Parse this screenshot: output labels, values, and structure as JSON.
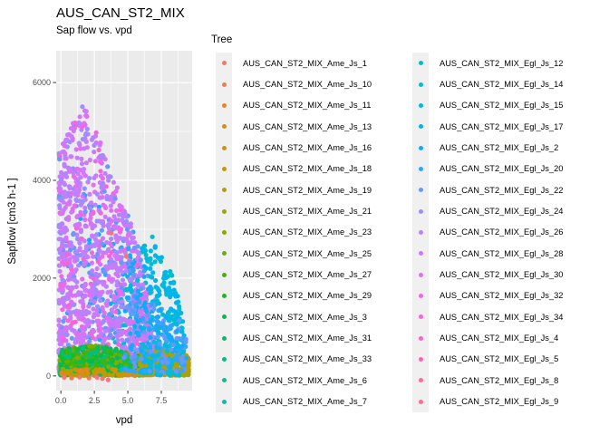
{
  "title": "AUS_CAN_ST2_MIX",
  "subtitle": "Sap flow vs. vpd",
  "chart_data": {
    "type": "scatter",
    "title": "AUS_CAN_ST2_MIX",
    "subtitle": "Sap flow vs. vpd",
    "xlabel": "vpd",
    "ylabel": "Sapflow [cm3 h-1 ]",
    "xlim": [
      -0.35,
      9.8
    ],
    "ylim": [
      -300,
      6650
    ],
    "grid": true,
    "panel_color": "#EBEBEB",
    "gridline_color": "#FFFFFF",
    "tick_label_color": "#4d4d4d",
    "x_ticks": {
      "values": [
        0,
        2.5,
        5,
        7.5
      ],
      "labels": [
        "0.0",
        "2.5",
        "5.0",
        "7.5"
      ]
    },
    "y_ticks": {
      "values": [
        0,
        2000,
        4000,
        6000
      ],
      "labels": [
        "0",
        "2000",
        "4000",
        "6000"
      ]
    },
    "x_minor": [
      1.25,
      3.75,
      6.25,
      8.75
    ],
    "y_minor": [
      1000,
      3000,
      5000
    ],
    "legend_title": "Tree",
    "legend_position": "right",
    "series": [
      {
        "name": "AUS_CAN_ST2_MIX_Ame_Js_1",
        "color": "#F8766D"
      },
      {
        "name": "AUS_CAN_ST2_MIX_Ame_Js_10",
        "color": "#F07E4A"
      },
      {
        "name": "AUS_CAN_ST2_MIX_Ame_Js_11",
        "color": "#E78528"
      },
      {
        "name": "AUS_CAN_ST2_MIX_Ame_Js_13",
        "color": "#DC8D0B"
      },
      {
        "name": "AUS_CAN_ST2_MIX_Ame_Js_16",
        "color": "#CF9400"
      },
      {
        "name": "AUS_CAN_ST2_MIX_Ame_Js_18",
        "color": "#C19B00"
      },
      {
        "name": "AUS_CAN_ST2_MIX_Ame_Js_19",
        "color": "#B1A000"
      },
      {
        "name": "AUS_CAN_ST2_MIX_Ame_Js_21",
        "color": "#9EA600"
      },
      {
        "name": "AUS_CAN_ST2_MIX_Ame_Js_23",
        "color": "#87AB00"
      },
      {
        "name": "AUS_CAN_ST2_MIX_Ame_Js_25",
        "color": "#69B000"
      },
      {
        "name": "AUS_CAN_ST2_MIX_Ame_Js_27",
        "color": "#42B500"
      },
      {
        "name": "AUS_CAN_ST2_MIX_Ame_Js_29",
        "color": "#1EB825"
      },
      {
        "name": "AUS_CAN_ST2_MIX_Ame_Js_3",
        "color": "#00BB51"
      },
      {
        "name": "AUS_CAN_ST2_MIX_Ame_Js_31",
        "color": "#00BD6C"
      },
      {
        "name": "AUS_CAN_ST2_MIX_Ame_Js_33",
        "color": "#00BF86"
      },
      {
        "name": "AUS_CAN_ST2_MIX_Ame_Js_6",
        "color": "#00C19C"
      },
      {
        "name": "AUS_CAN_ST2_MIX_Ame_Js_7",
        "color": "#00C0B1"
      },
      {
        "name": "AUS_CAN_ST2_MIX_Egl_Js_12",
        "color": "#00BFC4"
      },
      {
        "name": "AUS_CAN_ST2_MIX_Egl_Js_14",
        "color": "#00BDD5"
      },
      {
        "name": "AUS_CAN_ST2_MIX_Egl_Js_15",
        "color": "#00B8E4"
      },
      {
        "name": "AUS_CAN_ST2_MIX_Egl_Js_17",
        "color": "#00B2F2"
      },
      {
        "name": "AUS_CAN_ST2_MIX_Egl_Js_2",
        "color": "#13ABF9"
      },
      {
        "name": "AUS_CAN_ST2_MIX_Egl_Js_20",
        "color": "#32A3FE"
      },
      {
        "name": "AUS_CAN_ST2_MIX_Egl_Js_22",
        "color": "#6898FF"
      },
      {
        "name": "AUS_CAN_ST2_MIX_Egl_Js_24",
        "color": "#9B8EFF"
      },
      {
        "name": "AUS_CAN_ST2_MIX_Egl_Js_26",
        "color": "#B982FF"
      },
      {
        "name": "AUS_CAN_ST2_MIX_Egl_Js_28",
        "color": "#D077FC"
      },
      {
        "name": "AUS_CAN_ST2_MIX_Egl_Js_30",
        "color": "#E36DF4"
      },
      {
        "name": "AUS_CAN_ST2_MIX_Egl_Js_32",
        "color": "#F067E8"
      },
      {
        "name": "AUS_CAN_ST2_MIX_Egl_Js_34",
        "color": "#FA62DA"
      },
      {
        "name": "AUS_CAN_ST2_MIX_Egl_Js_4",
        "color": "#FD62C7"
      },
      {
        "name": "AUS_CAN_ST2_MIX_Egl_Js_5",
        "color": "#FF64B4"
      },
      {
        "name": "AUS_CAN_ST2_MIX_Egl_Js_8",
        "color": "#FF699E"
      },
      {
        "name": "AUS_CAN_ST2_MIX_Egl_Js_9",
        "color": "#FC6F86"
      }
    ],
    "point_clusters": [
      {
        "name": "blue-under",
        "count": 240,
        "x": {
          "min": 0.3,
          "span": 8.9,
          "pow": 1.0
        },
        "env": [
          [
            0,
            4100
          ],
          [
            3,
            3600
          ],
          [
            4,
            3400
          ],
          [
            5,
            3300
          ],
          [
            6,
            2500
          ],
          [
            7,
            1600
          ],
          [
            8,
            1300
          ],
          [
            9.4,
            900
          ]
        ],
        "ypow": 1.25,
        "ymin": 30,
        "colors": [
          "#32A3FE",
          "#13ABF9",
          "#6898FF"
        ]
      },
      {
        "name": "cyan-under",
        "count": 180,
        "x": {
          "min": 3.6,
          "span": 5.6,
          "pow": 0.85
        },
        "env": [
          [
            3.6,
            1500
          ],
          [
            5,
            2100
          ],
          [
            6,
            2600
          ],
          [
            7,
            2900
          ],
          [
            7.5,
            2700
          ],
          [
            8.5,
            1900
          ],
          [
            9.2,
            1100
          ]
        ],
        "ypow": 1.1,
        "ymin": 40,
        "colors": [
          "#00BDD5",
          "#00B8E4",
          "#00B2F2",
          "#00BFC4"
        ]
      },
      {
        "name": "purple-mass",
        "count": 1500,
        "x": {
          "min": -0.15,
          "span": 7.15,
          "pow": 1.3
        },
        "env": [
          [
            -0.2,
            4500
          ],
          [
            0.5,
            5050
          ],
          [
            1,
            5300
          ],
          [
            1.7,
            5550
          ],
          [
            2.5,
            5150
          ],
          [
            3,
            4800
          ],
          [
            3.5,
            4400
          ],
          [
            4,
            4100
          ],
          [
            4.5,
            3600
          ],
          [
            5,
            3300
          ],
          [
            5.5,
            2900
          ],
          [
            6,
            2400
          ],
          [
            6.5,
            1500
          ],
          [
            7,
            500
          ]
        ],
        "ypow": 1.55,
        "ymin": 20,
        "colors": [
          "#C77CFF",
          "#C77CFF",
          "#C77CFF",
          "#D077FC",
          "#D077FC",
          "#D077FC",
          "#B982FF",
          "#B982FF",
          "#B982FF",
          "#E36DF4",
          "#E36DF4",
          "#9B8EFF",
          "#9B8EFF",
          "#F067E8",
          "#6898FF",
          "#FA62DA"
        ]
      },
      {
        "name": "green-band",
        "count": 680,
        "x": {
          "min": -0.1,
          "span": 6.6,
          "pow": 1.05
        },
        "env": [
          [
            0,
            530
          ],
          [
            1,
            580
          ],
          [
            2.5,
            630
          ],
          [
            4,
            570
          ],
          [
            5,
            480
          ],
          [
            6,
            390
          ],
          [
            6.5,
            300
          ]
        ],
        "ypow": 1.2,
        "ymin": 10,
        "colors": [
          "#42B500",
          "#1EB825",
          "#69B000",
          "#87AB00",
          "#00BB51",
          "#00BD6C",
          "#33B433",
          "#00BF86"
        ]
      },
      {
        "name": "gold-specks",
        "count": 70,
        "x": {
          "min": 0,
          "span": 6.2,
          "pow": 1.0
        },
        "env": [
          [
            0,
            140
          ],
          [
            6.2,
            140
          ]
        ],
        "ypow": 1.4,
        "ymin": 5,
        "colors": [
          "#C19B00",
          "#CF9400",
          "#E78528",
          "#B1A000",
          "#DC8D0B"
        ]
      },
      {
        "name": "olive-cluster",
        "count": 330,
        "x": {
          "min": 5.9,
          "span": 3.65,
          "pow": 0.95
        },
        "env": [
          [
            5.9,
            520
          ],
          [
            8.8,
            520
          ],
          [
            9.55,
            400
          ]
        ],
        "ypow": 1.35,
        "ymin": 10,
        "colors": [
          "#B1A000",
          "#C19B00",
          "#9EA600",
          "#CF9400",
          "#A8A300"
        ]
      },
      {
        "name": "cyan-over",
        "count": 100,
        "x": {
          "min": 4.8,
          "span": 4.4,
          "pow": 0.9
        },
        "env": [
          [
            4.8,
            2200
          ],
          [
            6,
            2600
          ],
          [
            7,
            2900
          ],
          [
            7.5,
            2700
          ],
          [
            8.5,
            1900
          ],
          [
            9.2,
            1100
          ]
        ],
        "ypow": 1.0,
        "ymin": 60,
        "colors": [
          "#00BDD5",
          "#00B8E4",
          "#00B2F2"
        ]
      },
      {
        "name": "blue-over",
        "count": 120,
        "x": {
          "min": 4.5,
          "span": 4.9,
          "pow": 1.0
        },
        "env": [
          [
            4.5,
            3000
          ],
          [
            6,
            2400
          ],
          [
            7,
            1600
          ],
          [
            8,
            1300
          ],
          [
            9.4,
            900
          ]
        ],
        "ypow": 1.2,
        "ymin": 60,
        "colors": [
          "#32A3FE",
          "#6898FF",
          "#13ABF9"
        ]
      },
      {
        "name": "cyan-bottom",
        "count": 50,
        "x": {
          "min": 6,
          "span": 3.2,
          "pow": 1.0
        },
        "env": [
          [
            6,
            700
          ],
          [
            9.2,
            700
          ]
        ],
        "ypow": 1.2,
        "ymin": 10,
        "colors": [
          "#00B8E4",
          "#00BDD5"
        ]
      },
      {
        "name": "blue-bottom",
        "count": 60,
        "x": {
          "min": 6,
          "span": 3.4,
          "pow": 1.0
        },
        "env": [
          [
            6,
            1300
          ],
          [
            9.4,
            1100
          ]
        ],
        "ypow": 1.4,
        "ymin": 80,
        "colors": [
          "#32A3FE",
          "#6898FF",
          "#13ABF9"
        ]
      }
    ],
    "outlier_points": [
      {
        "x": 3.53,
        "y": -80,
        "color": "#FC6F86"
      },
      {
        "x": 3.76,
        "y": 2920,
        "color": "#F8766D"
      },
      {
        "x": 4.88,
        "y": 2450,
        "color": "#F8766D"
      },
      {
        "x": 0.25,
        "y": -30,
        "color": "#F8766D"
      },
      {
        "x": 0.8,
        "y": -45,
        "color": "#F07E4A"
      },
      {
        "x": 1.4,
        "y": -25,
        "color": "#F8766D"
      },
      {
        "x": 2.1,
        "y": -45,
        "color": "#F07E4A"
      },
      {
        "x": 2.7,
        "y": -30,
        "color": "#FC6F86"
      },
      {
        "x": 3.1,
        "y": -55,
        "color": "#F8766D"
      }
    ]
  },
  "legend": {
    "title": "Tree",
    "columns_split": 17
  }
}
